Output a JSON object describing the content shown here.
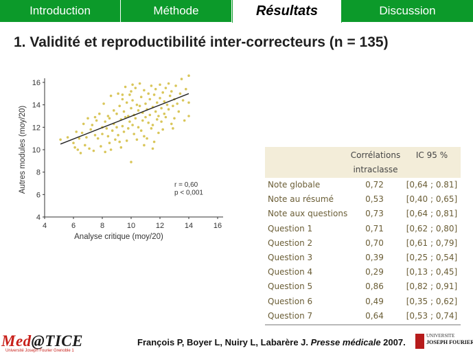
{
  "nav": {
    "tabs": [
      {
        "label": "Introduction",
        "active": false
      },
      {
        "label": "Méthode",
        "active": false
      },
      {
        "label": "Résultats",
        "active": true
      },
      {
        "label": "Discussion",
        "active": false
      }
    ]
  },
  "slide_title": "1. Validité et reproductibilité inter-correcteurs (n = 135)",
  "chart_data": {
    "type": "scatter",
    "xlabel": "Analyse critique (moy/20)",
    "ylabel": "Autres modules (moy/20)",
    "xlim": [
      4,
      16
    ],
    "ylim": [
      4,
      16
    ],
    "x_ticks": [
      4,
      6,
      8,
      10,
      12,
      14,
      16
    ],
    "y_ticks": [
      4,
      6,
      8,
      10,
      12,
      14,
      16
    ],
    "grid": false,
    "point_color": "#d9c65a",
    "annotation_r": "r = 0,60",
    "annotation_p": "p < 0,001",
    "regression_line": {
      "x": [
        5.1,
        14.0
      ],
      "y": [
        10.5,
        15.0
      ]
    },
    "points": [
      [
        5.1,
        10.9
      ],
      [
        5.6,
        11.1
      ],
      [
        6.0,
        10.6
      ],
      [
        6.2,
        11.6
      ],
      [
        6.3,
        10.0
      ],
      [
        6.4,
        11.0
      ],
      [
        6.5,
        9.7
      ],
      [
        6.6,
        11.5
      ],
      [
        6.7,
        12.3
      ],
      [
        6.8,
        10.4
      ],
      [
        6.9,
        11.1
      ],
      [
        7.0,
        12.8
      ],
      [
        7.1,
        10.1
      ],
      [
        7.2,
        11.8
      ],
      [
        7.3,
        12.2
      ],
      [
        7.4,
        9.9
      ],
      [
        7.5,
        11.3
      ],
      [
        7.6,
        12.6
      ],
      [
        7.7,
        11.0
      ],
      [
        7.8,
        13.2
      ],
      [
        7.9,
        10.3
      ],
      [
        8.0,
        12.0
      ],
      [
        8.0,
        11.4
      ],
      [
        8.1,
        14.1
      ],
      [
        8.2,
        12.5
      ],
      [
        8.2,
        9.8
      ],
      [
        8.3,
        11.9
      ],
      [
        8.4,
        13.0
      ],
      [
        8.5,
        10.6
      ],
      [
        8.5,
        12.8
      ],
      [
        8.6,
        14.8
      ],
      [
        8.7,
        11.7
      ],
      [
        8.8,
        12.3
      ],
      [
        8.8,
        13.5
      ],
      [
        8.9,
        10.9
      ],
      [
        9.0,
        13.2
      ],
      [
        9.0,
        12.0
      ],
      [
        9.1,
        15.0
      ],
      [
        9.1,
        11.3
      ],
      [
        9.2,
        13.9
      ],
      [
        9.3,
        12.7
      ],
      [
        9.3,
        10.2
      ],
      [
        9.4,
        14.5
      ],
      [
        9.4,
        12.1
      ],
      [
        9.5,
        13.4
      ],
      [
        9.5,
        11.6
      ],
      [
        9.6,
        15.6
      ],
      [
        9.6,
        12.9
      ],
      [
        9.7,
        14.2
      ],
      [
        9.7,
        10.8
      ],
      [
        9.8,
        13.0
      ],
      [
        9.8,
        11.9
      ],
      [
        9.9,
        14.9
      ],
      [
        9.9,
        12.5
      ],
      [
        10.0,
        13.7
      ],
      [
        10.0,
        8.9
      ],
      [
        10.0,
        15.2
      ],
      [
        10.1,
        12.2
      ],
      [
        10.1,
        14.4
      ],
      [
        10.2,
        13.1
      ],
      [
        10.2,
        11.4
      ],
      [
        10.3,
        15.5
      ],
      [
        10.3,
        12.8
      ],
      [
        10.4,
        14.0
      ],
      [
        10.4,
        10.9
      ],
      [
        10.5,
        13.5
      ],
      [
        10.5,
        12.0
      ],
      [
        10.6,
        15.9
      ],
      [
        10.6,
        13.9
      ],
      [
        10.7,
        11.7
      ],
      [
        10.7,
        14.7
      ],
      [
        10.8,
        12.6
      ],
      [
        10.8,
        13.3
      ],
      [
        10.9,
        15.3
      ],
      [
        10.9,
        11.2
      ],
      [
        11.0,
        14.1
      ],
      [
        11.0,
        12.9
      ],
      [
        11.1,
        13.6
      ],
      [
        11.1,
        11.0
      ],
      [
        11.2,
        15.0
      ],
      [
        11.2,
        12.4
      ],
      [
        11.3,
        14.5
      ],
      [
        11.3,
        13.1
      ],
      [
        11.4,
        11.9
      ],
      [
        11.4,
        15.7
      ],
      [
        11.5,
        13.8
      ],
      [
        11.5,
        12.2
      ],
      [
        11.6,
        14.9
      ],
      [
        11.6,
        10.7
      ],
      [
        11.7,
        13.4
      ],
      [
        11.7,
        15.4
      ],
      [
        11.8,
        12.7
      ],
      [
        11.8,
        14.2
      ],
      [
        11.9,
        13.0
      ],
      [
        11.9,
        11.5
      ],
      [
        12.0,
        15.8
      ],
      [
        12.0,
        14.6
      ],
      [
        12.1,
        12.5
      ],
      [
        12.1,
        13.7
      ],
      [
        12.2,
        15.1
      ],
      [
        12.2,
        11.8
      ],
      [
        12.3,
        14.3
      ],
      [
        12.3,
        13.2
      ],
      [
        12.4,
        15.5
      ],
      [
        12.4,
        12.9
      ],
      [
        12.5,
        14.0
      ],
      [
        12.6,
        13.6
      ],
      [
        12.6,
        15.9
      ],
      [
        12.7,
        14.8
      ],
      [
        12.8,
        12.3
      ],
      [
        12.8,
        15.2
      ],
      [
        12.9,
        13.9
      ],
      [
        13.0,
        14.5
      ],
      [
        13.0,
        12.8
      ],
      [
        13.1,
        15.7
      ],
      [
        13.2,
        14.1
      ],
      [
        13.3,
        13.4
      ],
      [
        13.4,
        15.0
      ],
      [
        13.5,
        16.3
      ],
      [
        13.6,
        14.4
      ],
      [
        13.7,
        12.6
      ],
      [
        13.8,
        15.4
      ],
      [
        14.0,
        16.6
      ],
      [
        14.0,
        13.0
      ],
      [
        14.0,
        14.2
      ],
      [
        9.2,
        10.7
      ],
      [
        8.6,
        10.0
      ],
      [
        10.9,
        10.4
      ],
      [
        7.5,
        12.9
      ],
      [
        8.4,
        11.2
      ],
      [
        11.5,
        10.1
      ],
      [
        12.9,
        11.9
      ],
      [
        10.1,
        15.8
      ],
      [
        9.4,
        14.9
      ],
      [
        6.1,
        10.2
      ]
    ]
  },
  "table": {
    "headers": [
      "",
      "Corrélations intraclasse",
      "IC 95 %"
    ],
    "header_line1": "Corrélations",
    "header_line2": "intraclasse",
    "header_ic": "IC 95 %",
    "rows": [
      {
        "label": "Note globale",
        "corr": "0,72",
        "ic": "[0,64 ; 0.81]"
      },
      {
        "label": "Note au résumé",
        "corr": "0,53",
        "ic": "[0,40 ; 0,65]"
      },
      {
        "label": "Note aux questions",
        "corr": "0,73",
        "ic": "[0,64 ; 0,81]"
      },
      {
        "label": "Question 1",
        "corr": "0,71",
        "ic": "[0,62 ; 0,80]"
      },
      {
        "label": "Question 2",
        "corr": "0,70",
        "ic": "[0,61 ; 0,79]"
      },
      {
        "label": "Question 3",
        "corr": "0,39",
        "ic": "[0,25 ; 0,54]"
      },
      {
        "label": "Question 4",
        "corr": "0,29",
        "ic": "[0,13 ; 0,45]"
      },
      {
        "label": "Question 5",
        "corr": "0,86",
        "ic": "[0,82 ; 0,91]"
      },
      {
        "label": "Question 6",
        "corr": "0,49",
        "ic": "[0,35 ; 0,62]"
      },
      {
        "label": "Question 7",
        "corr": "0,64",
        "ic": "[0,53 ; 0,74]"
      }
    ]
  },
  "footer": {
    "logo_part1": "Med",
    "logo_part2": "@TICE",
    "logo_sub": "Université Joseph Fourier Grenoble 1",
    "citation_authors": "François P, Boyer L, Nuiry L, Labarère J. ",
    "citation_journal": "Presse médicale",
    "citation_year": " 2007.",
    "ujf_line1": "UNIVERSITE",
    "ujf_line2": "JOSEPH FOURIER"
  },
  "colors": {
    "nav_green": "#0c9a2a",
    "table_header_bg": "#f3edd9",
    "table_text": "#6a5d35",
    "logo_red": "#c8201a"
  }
}
